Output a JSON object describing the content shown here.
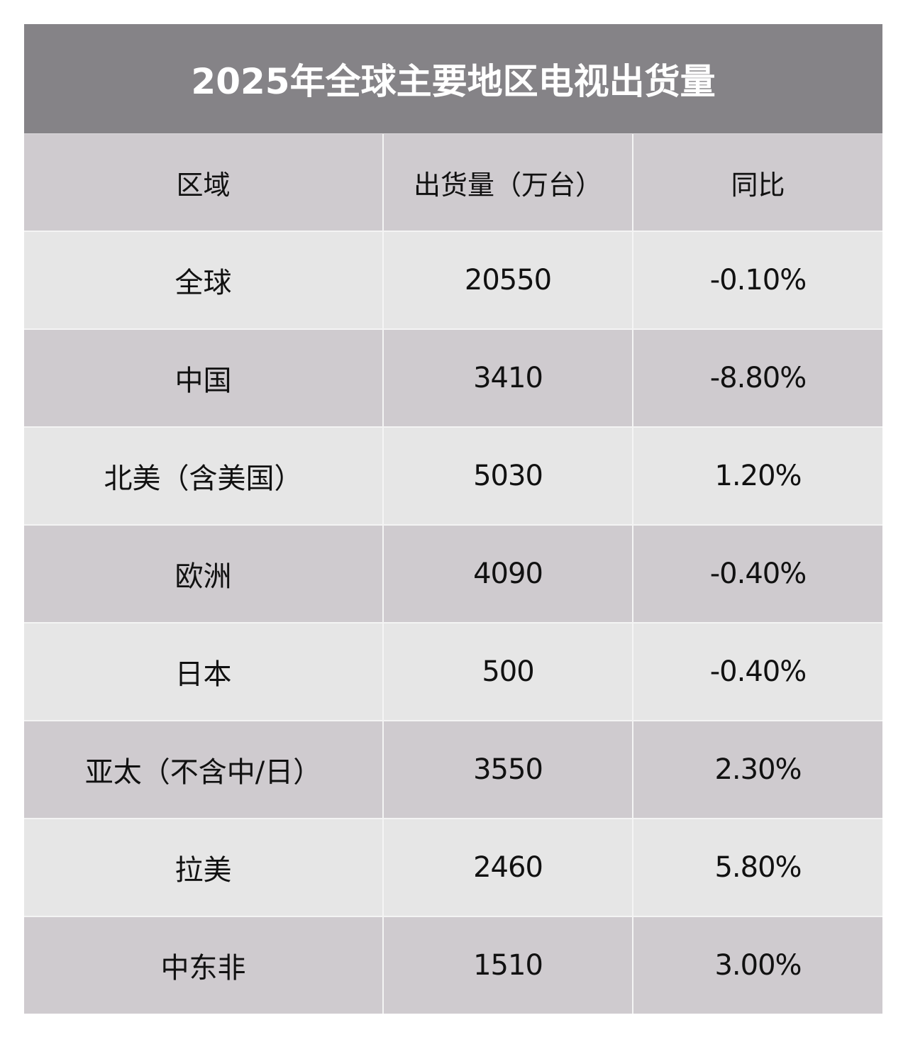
{
  "title": "2025年全球主要地区电视出货量",
  "colors": {
    "title_bg": "#858387",
    "header_bg": "#cfcbcf",
    "row_light": "#e6e6e6",
    "row_dark": "#cfcbcf",
    "title_text": "#ffffff",
    "cell_text": "#111111"
  },
  "table": {
    "headers": [
      "区域",
      "出货量（万台）",
      "同比"
    ],
    "rows": [
      {
        "region": "全球",
        "shipments": "20550",
        "yoy": "-0.10%"
      },
      {
        "region": "中国",
        "shipments": "3410",
        "yoy": "-8.80%"
      },
      {
        "region": "北美（含美国）",
        "shipments": "5030",
        "yoy": "1.20%"
      },
      {
        "region": "欧洲",
        "shipments": "4090",
        "yoy": "-0.40%"
      },
      {
        "region": "日本",
        "shipments": "500",
        "yoy": "-0.40%"
      },
      {
        "region": "亚太（不含中/日）",
        "shipments": "3550",
        "yoy": "2.30%"
      },
      {
        "region": "拉美",
        "shipments": "2460",
        "yoy": "5.80%"
      },
      {
        "region": "中东非",
        "shipments": "1510",
        "yoy": "3.00%"
      }
    ]
  }
}
